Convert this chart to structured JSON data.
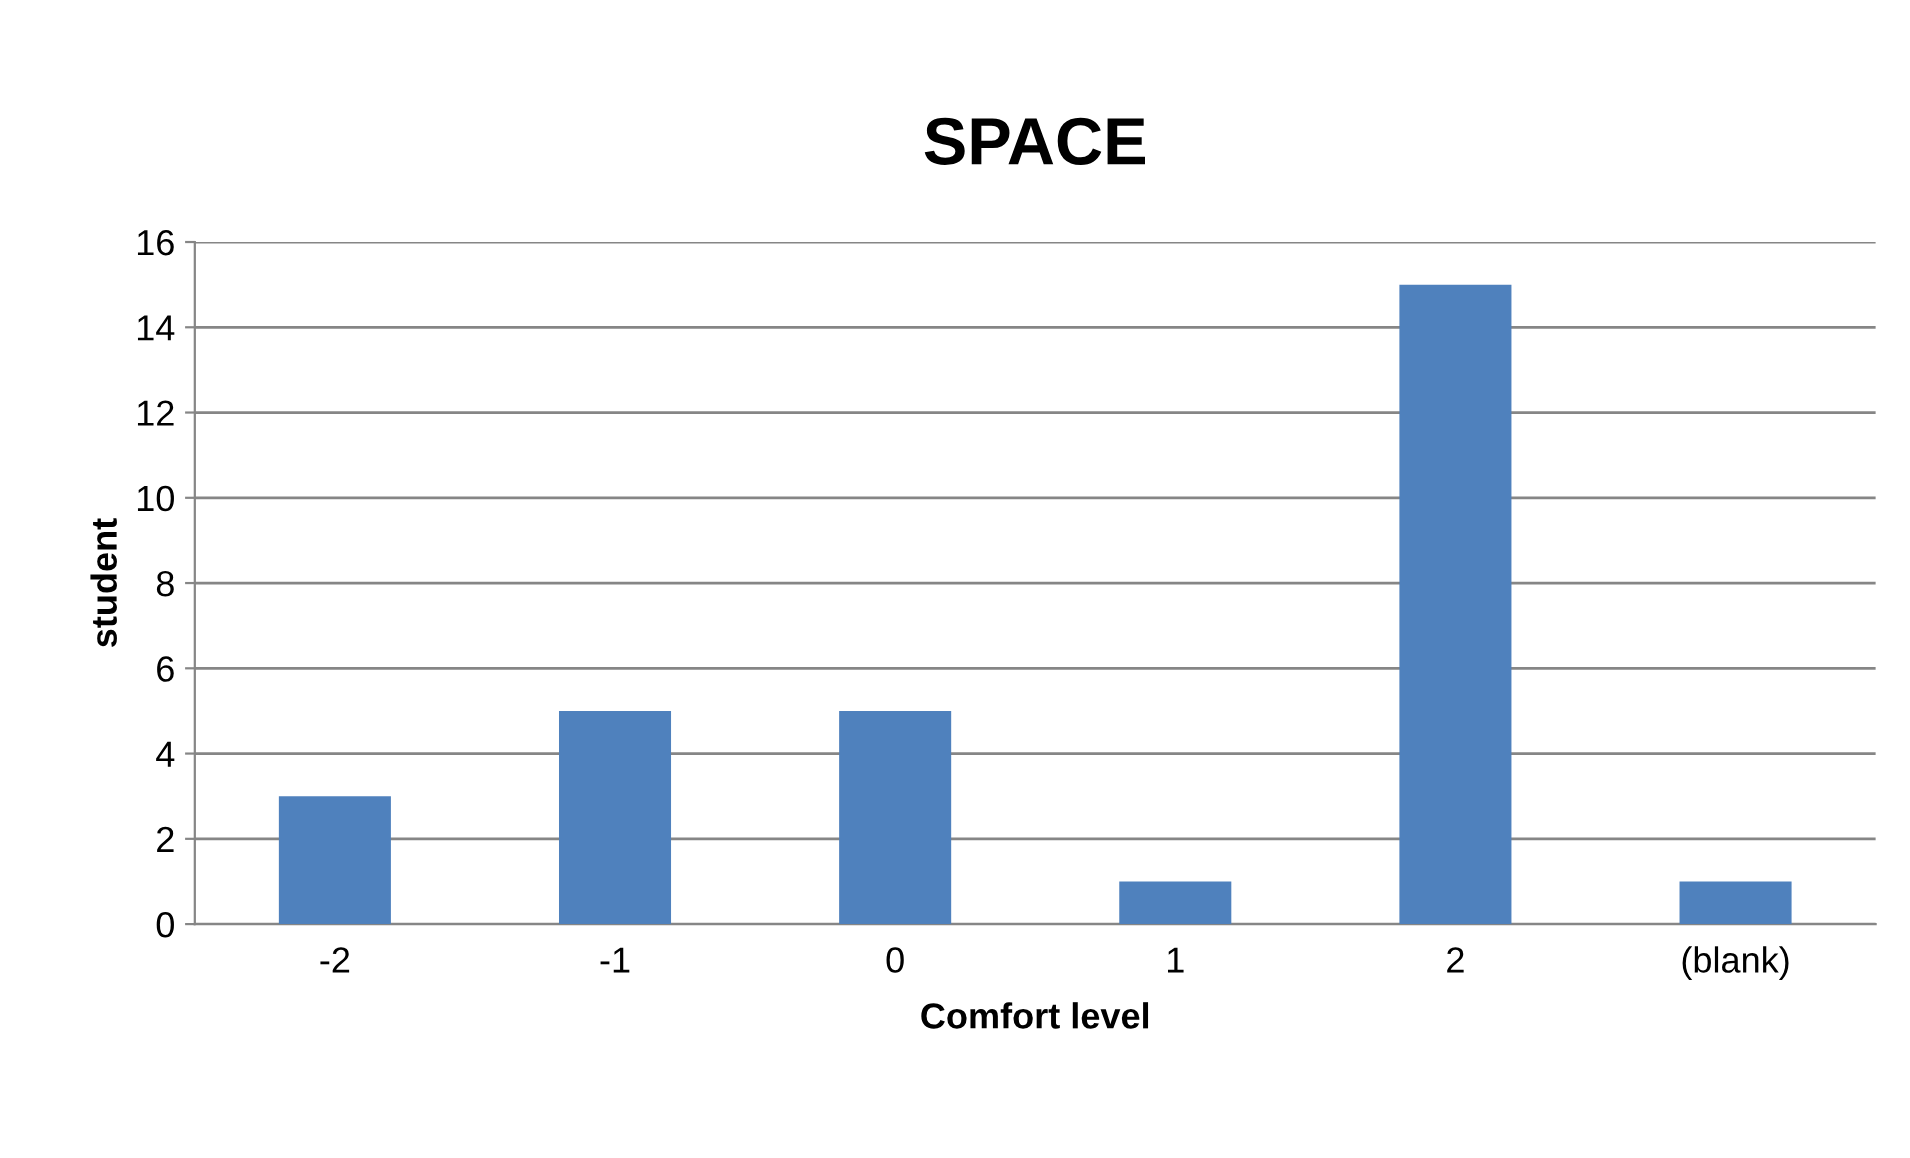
{
  "chart_data": {
    "type": "bar",
    "title": "SPACE",
    "xlabel": "Comfort level",
    "ylabel": "student",
    "categories": [
      "-2",
      "-1",
      "0",
      "1",
      "2",
      "(blank)"
    ],
    "values": [
      3,
      5,
      5,
      1,
      15,
      1
    ],
    "color": "#4f81bd",
    "ylim": [
      0,
      16
    ],
    "yticks": [
      0,
      2,
      4,
      6,
      8,
      10,
      12,
      14,
      16
    ],
    "grid": "y",
    "legend": false
  }
}
